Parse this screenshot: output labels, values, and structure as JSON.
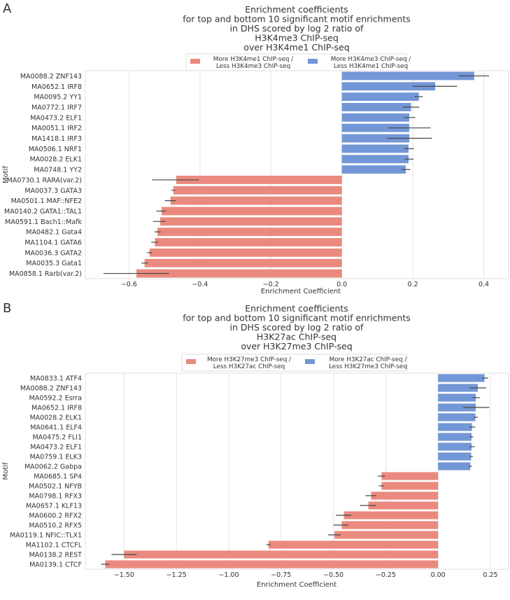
{
  "colors": {
    "negative": "#EA8A7E",
    "positive": "#7397D6",
    "grid": "#e4e4e4",
    "err": "#444444"
  },
  "chart_data": [
    {
      "type": "bar",
      "orientation": "horizontal",
      "panel_label": "A",
      "title": [
        "Enrichment coefficients",
        "for top and bottom 10 significant motif enrichments",
        "in DHS scored by log 2 ratio of",
        "H3K4me3 ChIP-seq",
        "over H3K4me1 ChIP-seq"
      ],
      "xlabel": "Enrichment Coefficient",
      "ylabel": "Motif",
      "xlim": [
        -0.723,
        0.47
      ],
      "xticks": [
        -0.6,
        -0.4,
        -0.2,
        0.0,
        0.2,
        0.4
      ],
      "xtick_labels": [
        "−0.6",
        "−0.4",
        "−0.2",
        "0.0",
        "0.2",
        "0.4"
      ],
      "grid": true,
      "legend_position": "top-center",
      "legend": [
        {
          "label": [
            "More H3K4me1 ChIP-seq /",
            "Less H3K4me3 ChIP-seq"
          ],
          "sign": "negative"
        },
        {
          "label": [
            "More H3K4me3 ChIP-seq /",
            "Less H3K4me1 ChIP-seq"
          ],
          "sign": "positive"
        }
      ],
      "categories": [
        "MA0088.2 ZNF143",
        "MA0652.1 IRF8",
        "MA0095.2 YY1",
        "MA0772.1 IRF7",
        "MA0473.2 ELF1",
        "MA0051.1 IRF2",
        "MA1418.1 IRF3",
        "MA0506.1 NRF1",
        "MA0028.2 ELK1",
        "MA0748.1 YY2",
        "MA0730.1 RARA(var.2)",
        "MA0037.3 GATA3",
        "MA0501.1 MAF::NFE2",
        "MA0140.2 GATA1::TAL1",
        "MA0591.1 Bach1::Mafk",
        "MA0482.1 Gata4",
        "MA1104.1 GATA6",
        "MA0036.3 GATA2",
        "MA0035.3 Gata1",
        "MA0858.1 Rarb(var.2)"
      ],
      "values": [
        0.373,
        0.263,
        0.217,
        0.195,
        0.19,
        0.19,
        0.19,
        0.188,
        0.188,
        0.18,
        -0.467,
        -0.475,
        -0.483,
        -0.508,
        -0.512,
        -0.52,
        -0.527,
        -0.542,
        -0.556,
        -0.579
      ],
      "error_low": [
        0.33,
        0.2,
        0.205,
        0.172,
        0.175,
        0.13,
        0.128,
        0.175,
        0.177,
        0.168,
        -0.535,
        -0.48,
        -0.499,
        -0.523,
        -0.532,
        -0.528,
        -0.537,
        -0.549,
        -0.565,
        -0.672
      ],
      "error_high": [
        0.415,
        0.325,
        0.228,
        0.218,
        0.207,
        0.25,
        0.254,
        0.203,
        0.202,
        0.193,
        -0.403,
        -0.47,
        -0.468,
        -0.495,
        -0.497,
        -0.51,
        -0.518,
        -0.535,
        -0.547,
        -0.487
      ]
    },
    {
      "type": "bar",
      "orientation": "horizontal",
      "panel_label": "B",
      "title": [
        "Enrichment coefficients",
        "for top and bottom 10 significant motif enrichments",
        "in DHS scored by log 2 ratio of",
        "H3K27ac ChIP-seq",
        "over H3K27me3 ChIP-seq"
      ],
      "xlabel": "Enrichment Coefficient",
      "ylabel": "Motif",
      "xlim": [
        -1.685,
        0.337
      ],
      "xticks": [
        -1.5,
        -1.25,
        -1.0,
        -0.75,
        -0.5,
        -0.25,
        0.0,
        0.25
      ],
      "xtick_labels": [
        "−1.50",
        "−1.25",
        "−1.00",
        "−0.75",
        "−0.50",
        "−0.25",
        "0.00",
        "0.25"
      ],
      "grid": true,
      "legend_position": "top-center",
      "legend": [
        {
          "label": [
            "More H3K27me3 ChIP-seq /",
            "Less H3K27ac ChIP-seq"
          ],
          "sign": "negative"
        },
        {
          "label": [
            "More H3K27ac ChIP-seq /",
            "Less H3K27me3 ChIP-seq"
          ],
          "sign": "positive"
        }
      ],
      "categories": [
        "MA0833.1 ATF4",
        "MA0088.2 ZNF143",
        "MA0592.2 Esrra",
        "MA0652.1 IRF8",
        "MA0028.2 ELK1",
        "MA0641.1 ELF4",
        "MA0475.2 FLI1",
        "MA0473.2 ELF1",
        "MA0759.1 ELK3",
        "MA0062.2 Gabpa",
        "MA0685.1 SP4",
        "MA0502.1 NFYB",
        "MA0798.1 RFX3",
        "MA0657.1 KLF13",
        "MA0600.2 RFX2",
        "MA0510.2 RFX5",
        "MA0119.1 NFIC::TLX1",
        "MA1102.1 CTCFL",
        "MA0138.2 REST",
        "MA0139.1 CTCF"
      ],
      "values": [
        0.222,
        0.19,
        0.18,
        0.18,
        0.178,
        0.162,
        0.16,
        0.16,
        0.158,
        0.154,
        -0.27,
        -0.27,
        -0.32,
        -0.333,
        -0.45,
        -0.46,
        -0.495,
        -0.81,
        -1.5,
        -1.59
      ],
      "error_low": [
        0.21,
        0.15,
        0.165,
        0.12,
        0.17,
        0.15,
        0.152,
        0.15,
        0.152,
        0.147,
        -0.287,
        -0.283,
        -0.347,
        -0.373,
        -0.488,
        -0.5,
        -0.525,
        -0.82,
        -1.56,
        -1.61
      ],
      "error_high": [
        0.24,
        0.23,
        0.2,
        0.245,
        0.19,
        0.178,
        0.168,
        0.175,
        0.166,
        0.162,
        -0.253,
        -0.26,
        -0.295,
        -0.297,
        -0.415,
        -0.428,
        -0.465,
        -0.8,
        -1.44,
        -1.57
      ]
    }
  ]
}
